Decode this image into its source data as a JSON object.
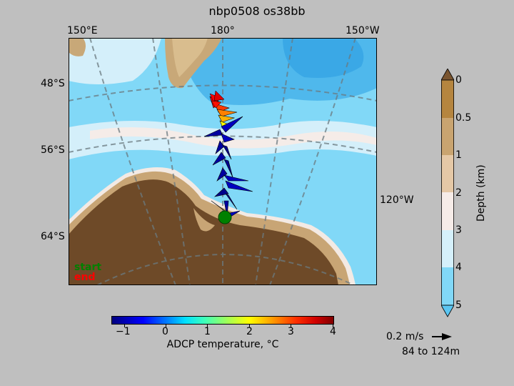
{
  "title": "nbp0508 os38bb",
  "map": {
    "lon_labels": [
      "150°E",
      "180°",
      "150°W",
      "120°W"
    ],
    "lat_labels": [
      "48°S",
      "56°S",
      "64°S"
    ],
    "start_label": "start",
    "end_label": "end",
    "colors": {
      "start": "#008000",
      "end": "#ff0000",
      "land": "#6e4a28",
      "ocean_deep": "#7fd6f5",
      "ocean_mid": "#53b9ec"
    }
  },
  "depth_colorbar": {
    "label": "Depth (km)",
    "ticks": [
      "0",
      "0.5",
      "1",
      "2",
      "3",
      "4",
      "5"
    ]
  },
  "temp_colorbar": {
    "label": "ADCP temperature, °C",
    "ticks": [
      "−1",
      "0",
      "1",
      "2",
      "3",
      "4"
    ],
    "range": [
      -1.4,
      4
    ]
  },
  "scale": {
    "speed_label": "0.2 m/s",
    "depth_range": "84 to 124m"
  }
}
